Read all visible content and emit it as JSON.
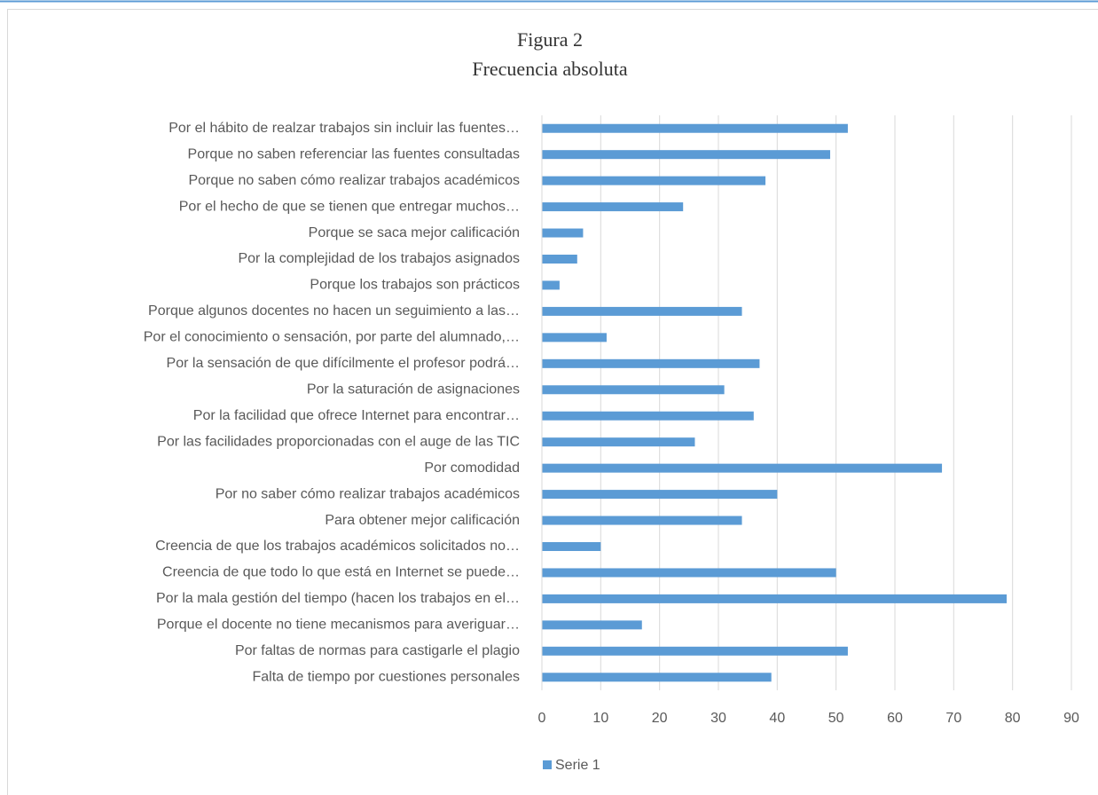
{
  "chart_data": {
    "type": "barh",
    "title": [
      "Figura 2",
      "Frecuencia absoluta"
    ],
    "categories": [
      "Por el hábito de realzar trabajos sin incluir las fuentes…",
      "Porque no saben referenciar las fuentes consultadas",
      "Porque no saben cómo realizar trabajos académicos",
      "Por el hecho de que se tienen que entregar muchos…",
      "Porque se saca mejor calificación",
      "Por la complejidad de los trabajos asignados",
      "Porque los trabajos son prácticos",
      "Porque algunos docentes no hacen un seguimiento a las…",
      "Por el conocimiento o sensación, por parte del alumnado,…",
      "Por la sensación de que difícilmente el profesor podrá…",
      "Por la saturación de asignaciones",
      "Por la facilidad que ofrece Internet para encontrar…",
      "Por las facilidades proporcionadas con el auge de las TIC",
      "Por comodidad",
      "Por no saber cómo realizar trabajos académicos",
      "Para obtener mejor calificación",
      "Creencia de que los trabajos académicos solicitados no…",
      "Creencia de que todo lo que está en Internet se puede…",
      "Por la mala gestión del tiempo (hacen los trabajos en el…",
      "Porque el docente no tiene mecanismos para averiguar…",
      "Por faltas de normas para castigarle el plagio",
      "Falta de tiempo por cuestiones personales"
    ],
    "series": [
      {
        "name": "Serie 1",
        "color": "#5b9bd5",
        "values": [
          52,
          49,
          38,
          24,
          7,
          6,
          3,
          34,
          11,
          37,
          31,
          36,
          26,
          68,
          40,
          34,
          10,
          50,
          79,
          17,
          52,
          39
        ]
      }
    ],
    "xlim": [
      0,
      90
    ],
    "xticks": [
      0,
      10,
      20,
      30,
      40,
      50,
      60,
      70,
      80,
      90
    ],
    "grid": true,
    "legend": "bottom"
  }
}
